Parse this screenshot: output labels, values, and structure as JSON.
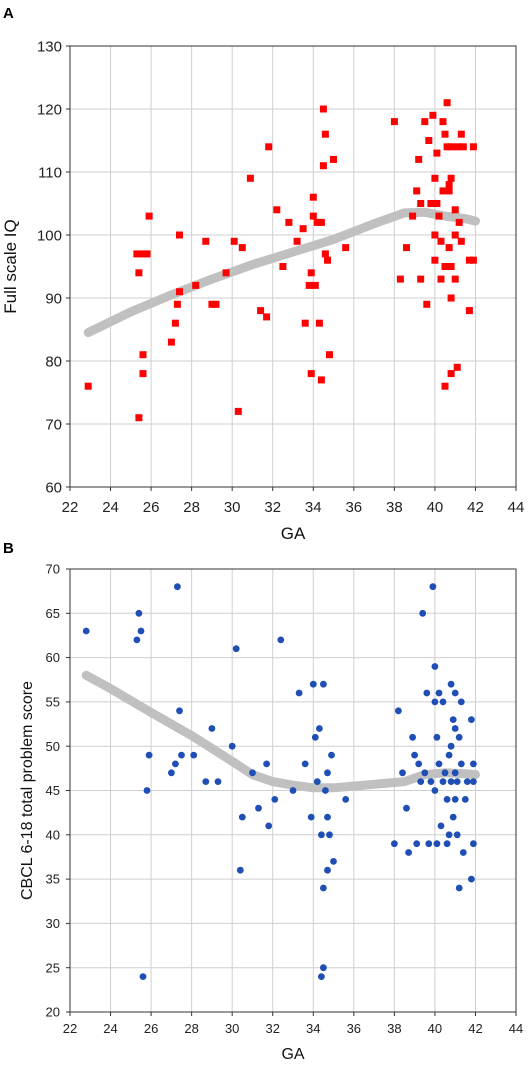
{
  "chart_data": [
    {
      "panel": "A",
      "type": "scatter",
      "xlabel": "GA",
      "ylabel": "Full scale IQ",
      "xlim": [
        22,
        44
      ],
      "ylim": [
        60,
        130
      ],
      "xticks": [
        22,
        24,
        26,
        28,
        30,
        32,
        34,
        36,
        38,
        40,
        42,
        44
      ],
      "yticks": [
        60,
        70,
        80,
        90,
        100,
        110,
        120,
        130
      ],
      "grid": true,
      "marker": "square",
      "point_color": "#ff0000",
      "trend_color": "#c0c0c0",
      "points": [
        [
          22.9,
          76
        ],
        [
          25.3,
          97
        ],
        [
          25.4,
          71
        ],
        [
          25.4,
          94
        ],
        [
          25.6,
          97
        ],
        [
          25.6,
          81
        ],
        [
          25.6,
          78
        ],
        [
          25.8,
          97
        ],
        [
          25.9,
          103
        ],
        [
          27.0,
          83
        ],
        [
          27.2,
          86
        ],
        [
          27.3,
          89
        ],
        [
          27.4,
          91
        ],
        [
          27.4,
          100
        ],
        [
          28.2,
          92
        ],
        [
          28.7,
          99
        ],
        [
          29.0,
          89
        ],
        [
          29.2,
          89
        ],
        [
          29.7,
          94
        ],
        [
          30.1,
          99
        ],
        [
          30.3,
          72
        ],
        [
          30.5,
          98
        ],
        [
          30.9,
          109
        ],
        [
          31.4,
          88
        ],
        [
          31.7,
          87
        ],
        [
          31.8,
          114
        ],
        [
          32.2,
          104
        ],
        [
          32.5,
          95
        ],
        [
          32.8,
          102
        ],
        [
          33.2,
          99
        ],
        [
          33.5,
          101
        ],
        [
          33.6,
          86
        ],
        [
          33.8,
          92
        ],
        [
          33.9,
          94
        ],
        [
          33.9,
          78
        ],
        [
          34.0,
          103
        ],
        [
          34.0,
          106
        ],
        [
          34.1,
          92
        ],
        [
          34.2,
          102
        ],
        [
          34.3,
          86
        ],
        [
          34.4,
          102
        ],
        [
          34.4,
          77
        ],
        [
          34.5,
          111
        ],
        [
          34.5,
          120
        ],
        [
          34.6,
          97
        ],
        [
          34.6,
          116
        ],
        [
          34.7,
          96
        ],
        [
          34.8,
          81
        ],
        [
          35.0,
          112
        ],
        [
          35.6,
          98
        ],
        [
          38.0,
          118
        ],
        [
          38.3,
          93
        ],
        [
          38.6,
          98
        ],
        [
          38.9,
          103
        ],
        [
          39.1,
          107
        ],
        [
          39.2,
          112
        ],
        [
          39.3,
          105
        ],
        [
          39.3,
          93
        ],
        [
          39.5,
          118
        ],
        [
          39.6,
          89
        ],
        [
          39.7,
          115
        ],
        [
          39.8,
          105
        ],
        [
          39.9,
          119
        ],
        [
          40.0,
          109
        ],
        [
          40.0,
          100
        ],
        [
          40.0,
          96
        ],
        [
          40.1,
          113
        ],
        [
          40.1,
          105
        ],
        [
          40.2,
          103
        ],
        [
          40.3,
          99
        ],
        [
          40.3,
          93
        ],
        [
          40.4,
          118
        ],
        [
          40.4,
          107
        ],
        [
          40.5,
          116
        ],
        [
          40.5,
          95
        ],
        [
          40.5,
          76
        ],
        [
          40.6,
          121
        ],
        [
          40.6,
          114
        ],
        [
          40.7,
          108
        ],
        [
          40.7,
          107
        ],
        [
          40.7,
          98
        ],
        [
          40.8,
          114
        ],
        [
          40.8,
          109
        ],
        [
          40.8,
          95
        ],
        [
          40.8,
          90
        ],
        [
          40.8,
          78
        ],
        [
          41.0,
          104
        ],
        [
          41.0,
          100
        ],
        [
          41.0,
          93
        ],
        [
          41.1,
          114
        ],
        [
          41.1,
          79
        ],
        [
          41.2,
          102
        ],
        [
          41.3,
          116
        ],
        [
          41.3,
          99
        ],
        [
          41.4,
          114
        ],
        [
          41.7,
          96
        ],
        [
          41.7,
          88
        ],
        [
          41.9,
          114
        ],
        [
          41.9,
          96
        ]
      ],
      "trend": [
        [
          22.9,
          84.5
        ],
        [
          25,
          87.8
        ],
        [
          27,
          90.5
        ],
        [
          29,
          93
        ],
        [
          31,
          95.3
        ],
        [
          33,
          97.3
        ],
        [
          35,
          99.3
        ],
        [
          37,
          101.8
        ],
        [
          38.5,
          103.5
        ],
        [
          39.5,
          103.6
        ],
        [
          40.5,
          103
        ],
        [
          41.5,
          102.6
        ],
        [
          42,
          102.2
        ]
      ]
    },
    {
      "panel": "B",
      "type": "scatter",
      "xlabel": "GA",
      "ylabel": "CBCL 6-18 total problem score",
      "xlim": [
        22,
        44
      ],
      "ylim": [
        20,
        70
      ],
      "xticks": [
        22,
        24,
        26,
        28,
        30,
        32,
        34,
        36,
        38,
        40,
        42,
        44
      ],
      "yticks": [
        20,
        25,
        30,
        35,
        40,
        45,
        50,
        55,
        60,
        65,
        70
      ],
      "grid": true,
      "marker": "circle",
      "point_color": "#1f4fb5",
      "trend_color": "#c0c0c0",
      "points": [
        [
          22.8,
          63
        ],
        [
          25.3,
          62
        ],
        [
          25.4,
          65
        ],
        [
          25.5,
          63
        ],
        [
          25.6,
          24
        ],
        [
          25.8,
          45
        ],
        [
          25.9,
          49
        ],
        [
          27.0,
          47
        ],
        [
          27.2,
          48
        ],
        [
          27.3,
          68
        ],
        [
          27.4,
          54
        ],
        [
          27.5,
          49
        ],
        [
          28.1,
          49
        ],
        [
          28.7,
          46
        ],
        [
          29.0,
          52
        ],
        [
          29.3,
          46
        ],
        [
          30.0,
          50
        ],
        [
          30.2,
          61
        ],
        [
          30.4,
          36
        ],
        [
          30.5,
          42
        ],
        [
          31.0,
          47
        ],
        [
          31.3,
          43
        ],
        [
          31.7,
          48
        ],
        [
          31.8,
          41
        ],
        [
          32.1,
          44
        ],
        [
          32.4,
          62
        ],
        [
          33.0,
          45
        ],
        [
          33.3,
          56
        ],
        [
          33.6,
          48
        ],
        [
          33.9,
          42
        ],
        [
          34.0,
          57
        ],
        [
          34.1,
          51
        ],
        [
          34.2,
          46
        ],
        [
          34.3,
          52
        ],
        [
          34.4,
          24
        ],
        [
          34.4,
          40
        ],
        [
          34.5,
          57
        ],
        [
          34.5,
          34
        ],
        [
          34.5,
          25
        ],
        [
          34.6,
          45
        ],
        [
          34.7,
          42
        ],
        [
          34.7,
          47
        ],
        [
          34.7,
          36
        ],
        [
          34.8,
          40
        ],
        [
          34.9,
          49
        ],
        [
          35.0,
          37
        ],
        [
          35.6,
          44
        ],
        [
          38.0,
          39
        ],
        [
          38.2,
          54
        ],
        [
          38.4,
          47
        ],
        [
          38.6,
          43
        ],
        [
          38.7,
          38
        ],
        [
          38.9,
          51
        ],
        [
          39.0,
          49
        ],
        [
          39.1,
          39
        ],
        [
          39.2,
          48
        ],
        [
          39.3,
          46
        ],
        [
          39.4,
          65
        ],
        [
          39.5,
          47
        ],
        [
          39.6,
          56
        ],
        [
          39.7,
          39
        ],
        [
          39.8,
          46
        ],
        [
          39.9,
          68
        ],
        [
          40.0,
          59
        ],
        [
          40.0,
          55
        ],
        [
          40.0,
          45
        ],
        [
          40.1,
          51
        ],
        [
          40.1,
          39
        ],
        [
          40.2,
          56
        ],
        [
          40.2,
          48
        ],
        [
          40.3,
          41
        ],
        [
          40.4,
          46
        ],
        [
          40.4,
          55
        ],
        [
          40.5,
          47
        ],
        [
          40.6,
          44
        ],
        [
          40.6,
          39
        ],
        [
          40.7,
          49
        ],
        [
          40.7,
          40
        ],
        [
          40.8,
          57
        ],
        [
          40.8,
          50
        ],
        [
          40.8,
          46
        ],
        [
          40.9,
          53
        ],
        [
          40.9,
          42
        ],
        [
          41.0,
          56
        ],
        [
          41.0,
          52
        ],
        [
          41.0,
          47
        ],
        [
          41.0,
          44
        ],
        [
          41.1,
          40
        ],
        [
          41.1,
          46
        ],
        [
          41.2,
          51
        ],
        [
          41.2,
          34
        ],
        [
          41.3,
          55
        ],
        [
          41.3,
          48
        ],
        [
          41.4,
          38
        ],
        [
          41.5,
          44
        ],
        [
          41.6,
          46
        ],
        [
          41.8,
          53
        ],
        [
          41.8,
          35
        ],
        [
          41.9,
          48
        ],
        [
          41.9,
          39
        ],
        [
          41.9,
          46
        ]
      ],
      "trend": [
        [
          22.8,
          58
        ],
        [
          24,
          56.5
        ],
        [
          26,
          53.8
        ],
        [
          28,
          51.2
        ],
        [
          30,
          48.3
        ],
        [
          31,
          46.8
        ],
        [
          32,
          46
        ],
        [
          33,
          45.6
        ],
        [
          34,
          45.3
        ],
        [
          35,
          45.3
        ],
        [
          36,
          45.5
        ],
        [
          37,
          45.7
        ],
        [
          38.5,
          46
        ],
        [
          39.5,
          46.8
        ],
        [
          40.5,
          47
        ],
        [
          41.5,
          46.9
        ],
        [
          42,
          46.8
        ]
      ]
    }
  ]
}
